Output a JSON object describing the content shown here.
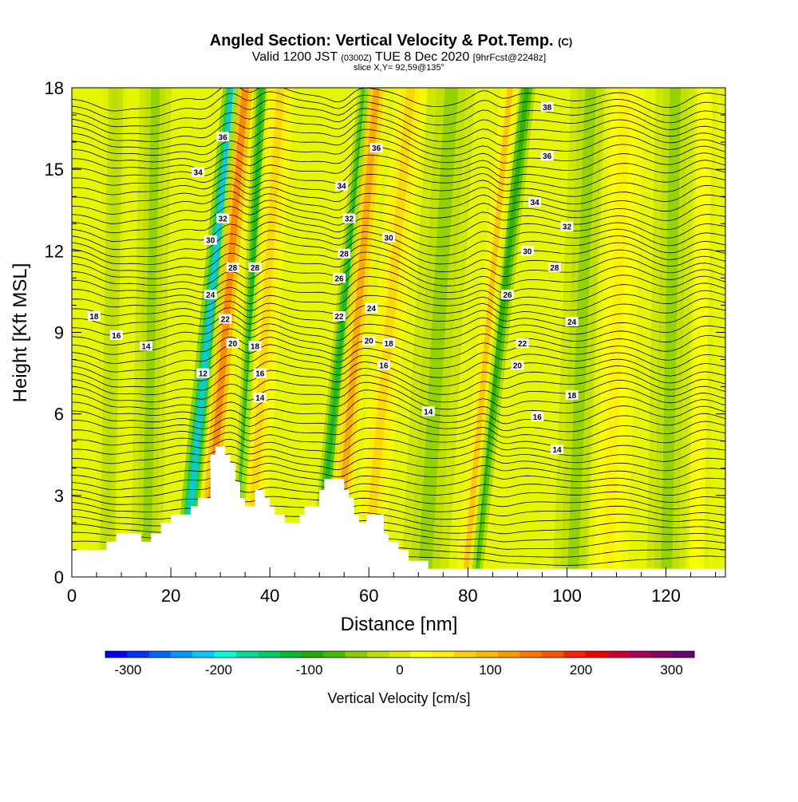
{
  "title": {
    "main": "Angled Section: Vertical Velocity & Pot.Temp.",
    "main_suffix": "(C)",
    "valid_a": "Valid 1200 JST",
    "valid_b": "(0300Z)",
    "valid_c": "TUE 8 Dec 2020",
    "valid_d": "[9hrFcst@2248z]",
    "slice": "slice X,Y= 92,59@135°"
  },
  "chart_data": {
    "type": "heatmap",
    "xlabel": "Distance [nm]",
    "ylabel": "Height [Kft MSL]",
    "xlim": [
      0,
      132
    ],
    "ylim": [
      0,
      18
    ],
    "x_ticks": [
      0,
      20,
      40,
      60,
      80,
      100,
      120
    ],
    "y_ticks": [
      0,
      3,
      6,
      9,
      12,
      15,
      18
    ],
    "grid": false,
    "contour_field": "potential temperature",
    "contour_labels": [
      {
        "text": "38",
        "x": 96,
        "y": 17.3
      },
      {
        "text": "36",
        "x": 30.5,
        "y": 16.2
      },
      {
        "text": "36",
        "x": 61.5,
        "y": 15.8
      },
      {
        "text": "36",
        "x": 96,
        "y": 15.5
      },
      {
        "text": "34",
        "x": 25.5,
        "y": 14.9
      },
      {
        "text": "34",
        "x": 54.5,
        "y": 14.4
      },
      {
        "text": "34",
        "x": 93.5,
        "y": 13.8
      },
      {
        "text": "32",
        "x": 30.5,
        "y": 13.2
      },
      {
        "text": "32",
        "x": 56,
        "y": 13.2
      },
      {
        "text": "32",
        "x": 100,
        "y": 12.9
      },
      {
        "text": "30",
        "x": 28,
        "y": 12.4
      },
      {
        "text": "30",
        "x": 64,
        "y": 12.5
      },
      {
        "text": "30",
        "x": 92,
        "y": 12.0
      },
      {
        "text": "28",
        "x": 55,
        "y": 11.9
      },
      {
        "text": "28",
        "x": 32.5,
        "y": 11.4
      },
      {
        "text": "28",
        "x": 37,
        "y": 11.4
      },
      {
        "text": "28",
        "x": 97.5,
        "y": 11.4
      },
      {
        "text": "26",
        "x": 54,
        "y": 11.0
      },
      {
        "text": "26",
        "x": 88,
        "y": 10.4
      },
      {
        "text": "24",
        "x": 28,
        "y": 10.4
      },
      {
        "text": "24",
        "x": 60.5,
        "y": 9.9
      },
      {
        "text": "24",
        "x": 101,
        "y": 9.4
      },
      {
        "text": "22",
        "x": 31,
        "y": 9.5
      },
      {
        "text": "22",
        "x": 54,
        "y": 9.6
      },
      {
        "text": "22",
        "x": 91,
        "y": 8.6
      },
      {
        "text": "20",
        "x": 32.5,
        "y": 8.6
      },
      {
        "text": "20",
        "x": 60,
        "y": 8.7
      },
      {
        "text": "20",
        "x": 90,
        "y": 7.8
      },
      {
        "text": "18",
        "x": 4.5,
        "y": 9.6
      },
      {
        "text": "18",
        "x": 64,
        "y": 8.6
      },
      {
        "text": "18",
        "x": 37,
        "y": 8.5
      },
      {
        "text": "18",
        "x": 101,
        "y": 6.7
      },
      {
        "text": "16",
        "x": 9,
        "y": 8.9
      },
      {
        "text": "16",
        "x": 63,
        "y": 7.8
      },
      {
        "text": "16",
        "x": 38,
        "y": 7.5
      },
      {
        "text": "16",
        "x": 94,
        "y": 5.9
      },
      {
        "text": "14",
        "x": 15,
        "y": 8.5
      },
      {
        "text": "14",
        "x": 38,
        "y": 6.6
      },
      {
        "text": "14",
        "x": 72,
        "y": 6.1
      },
      {
        "text": "14",
        "x": 98,
        "y": 4.7
      },
      {
        "text": "12",
        "x": 26.5,
        "y": 7.5
      }
    ],
    "colorbar": {
      "label": "Vertical Velocity [cm/s]",
      "ticks": [
        -300,
        -200,
        -100,
        0,
        100,
        200,
        300
      ],
      "tick_labels": [
        "-300",
        "-200",
        "-100",
        "0",
        "100",
        "200",
        "300"
      ],
      "colors": [
        "#0000ff",
        "#0033ff",
        "#0066ff",
        "#0099ff",
        "#00ccff",
        "#00ffdd",
        "#00dd99",
        "#00cc66",
        "#00bb33",
        "#22aa00",
        "#44bb00",
        "#88cc00",
        "#bbdd00",
        "#ddee00",
        "#ffff00",
        "#ffee00",
        "#ffd000",
        "#ffb800",
        "#ff9900",
        "#ff7700",
        "#ff5500",
        "#ff2200",
        "#ee0000",
        "#cc0033",
        "#aa0055",
        "#880066",
        "#660077"
      ]
    },
    "terrain_profile": [
      [
        0,
        1.0
      ],
      [
        6,
        1.0
      ],
      [
        7,
        1.3
      ],
      [
        8,
        1.3
      ],
      [
        9,
        1.6
      ],
      [
        13,
        1.6
      ],
      [
        14,
        1.3
      ],
      [
        15,
        1.3
      ],
      [
        16,
        1.6
      ],
      [
        17,
        1.6
      ],
      [
        18,
        2.0
      ],
      [
        19,
        2.0
      ],
      [
        20,
        2.3
      ],
      [
        23,
        2.3
      ],
      [
        24,
        2.6
      ],
      [
        25,
        2.6
      ],
      [
        25.5,
        2.9
      ],
      [
        27,
        2.9
      ],
      [
        28,
        4.5
      ],
      [
        29,
        4.8
      ],
      [
        30,
        4.8
      ],
      [
        31,
        4.5
      ],
      [
        32,
        4.2
      ],
      [
        33,
        3.5
      ],
      [
        34,
        2.9
      ],
      [
        35,
        2.6
      ],
      [
        36,
        2.6
      ],
      [
        37,
        3.2
      ],
      [
        38,
        3.2
      ],
      [
        39,
        2.9
      ],
      [
        40,
        2.6
      ],
      [
        41,
        2.3
      ],
      [
        42,
        2.3
      ],
      [
        43,
        2.0
      ],
      [
        45,
        2.0
      ],
      [
        46,
        2.3
      ],
      [
        47,
        2.6
      ],
      [
        49,
        2.6
      ],
      [
        50,
        3.2
      ],
      [
        51,
        3.6
      ],
      [
        54,
        3.6
      ],
      [
        55,
        3.2
      ],
      [
        56,
        2.9
      ],
      [
        57,
        2.3
      ],
      [
        58,
        2.0
      ],
      [
        59,
        2.0
      ],
      [
        59.5,
        2.3
      ],
      [
        62,
        2.3
      ],
      [
        63,
        1.6
      ],
      [
        64,
        1.3
      ],
      [
        65,
        1.3
      ],
      [
        66,
        1.0
      ],
      [
        68,
        0.6
      ],
      [
        70,
        0.6
      ],
      [
        72,
        0.3
      ],
      [
        132,
        0.3
      ]
    ],
    "updraft_bands": [
      {
        "x": 27.5,
        "slope": 0.55,
        "width": 2.4,
        "value": -220
      },
      {
        "x": 31.0,
        "slope": 0.45,
        "width": 3.0,
        "value": 160
      },
      {
        "x": 36.0,
        "slope": 0.25,
        "width": 1.8,
        "value": -120
      },
      {
        "x": 39.0,
        "slope": 0.35,
        "width": 3.5,
        "value": 80
      },
      {
        "x": 54.5,
        "slope": 0.55,
        "width": 2.0,
        "value": -130
      },
      {
        "x": 57.5,
        "slope": 0.45,
        "width": 3.0,
        "value": 120
      },
      {
        "x": 64.0,
        "slope": 0.5,
        "width": 4.0,
        "value": 70
      },
      {
        "x": 74.0,
        "slope": 0.3,
        "width": 6.0,
        "value": -50
      },
      {
        "x": 86.5,
        "slope": 0.6,
        "width": 2.2,
        "value": -110
      },
      {
        "x": 84.0,
        "slope": 0.5,
        "width": 2.4,
        "value": 90
      },
      {
        "x": 16.0,
        "slope": 0.1,
        "width": 4.0,
        "value": -40
      },
      {
        "x": 8.0,
        "slope": 0.1,
        "width": 3.0,
        "value": -30
      },
      {
        "x": 103.0,
        "slope": 0.2,
        "width": 5.0,
        "value": -40
      },
      {
        "x": 110.0,
        "slope": 0.2,
        "width": 5.0,
        "value": 40
      },
      {
        "x": 121.0,
        "slope": 0.1,
        "width": 5.0,
        "value": -40
      },
      {
        "x": 127.0,
        "slope": 0.1,
        "width": 3.0,
        "value": 30
      }
    ]
  }
}
